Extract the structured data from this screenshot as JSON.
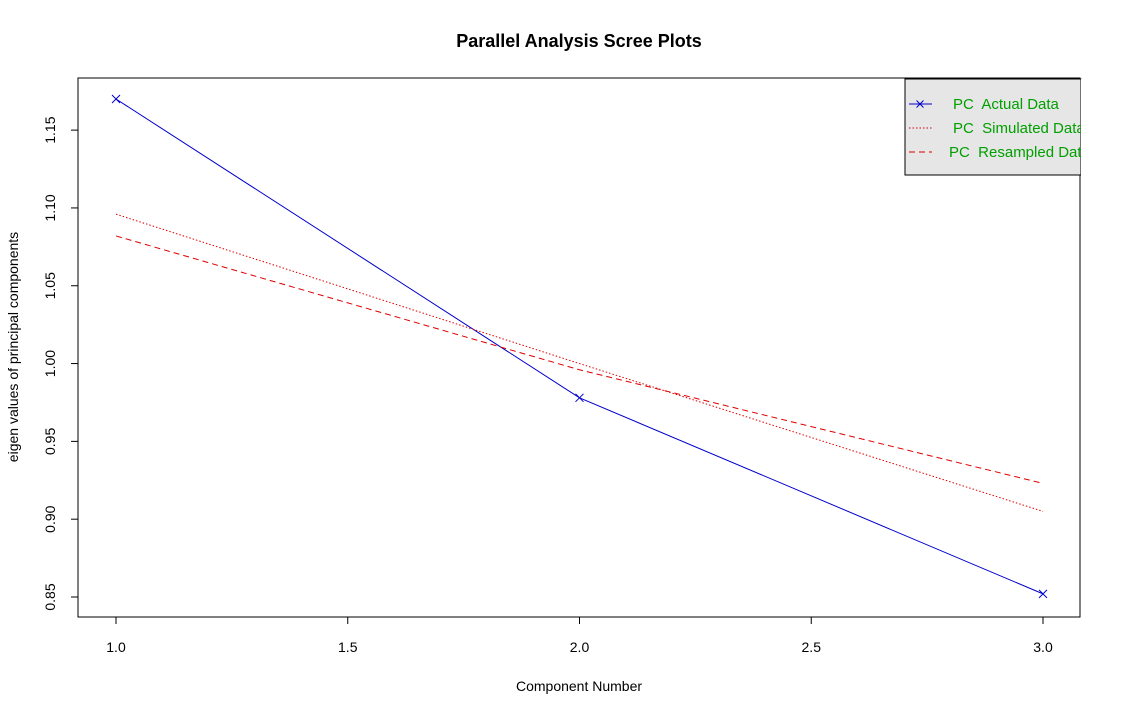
{
  "chart_data": {
    "type": "line",
    "title": "Parallel Analysis Scree Plots",
    "xlabel": "Component Number",
    "ylabel": "eigen values of principal components",
    "xlim": [
      1.0,
      3.0
    ],
    "ylim": [
      0.85,
      1.17
    ],
    "xticks": [
      "1.0",
      "1.5",
      "2.0",
      "2.5",
      "3.0"
    ],
    "yticks": [
      "0.85",
      "0.90",
      "0.95",
      "1.00",
      "1.05",
      "1.10",
      "1.15"
    ],
    "grid": false,
    "legend_position": "top-right",
    "x": [
      1,
      2,
      3
    ],
    "series": [
      {
        "name": "PC  Actual Data",
        "values": [
          1.17,
          0.978,
          0.852
        ],
        "color": "#0000cc",
        "line_style": "solid",
        "marker": "x"
      },
      {
        "name": "PC  Simulated Data",
        "values": [
          1.096,
          1.0,
          0.905
        ],
        "color": "#dd0000",
        "line_style": "dotted",
        "marker": "none"
      },
      {
        "name": "PC  Resampled Data",
        "values": [
          1.082,
          0.996,
          0.923
        ],
        "color": "#dd0000",
        "line_style": "dashed",
        "marker": "none"
      }
    ],
    "legend_text_color": "#00a000",
    "legend_background": "#e6e6e6"
  }
}
